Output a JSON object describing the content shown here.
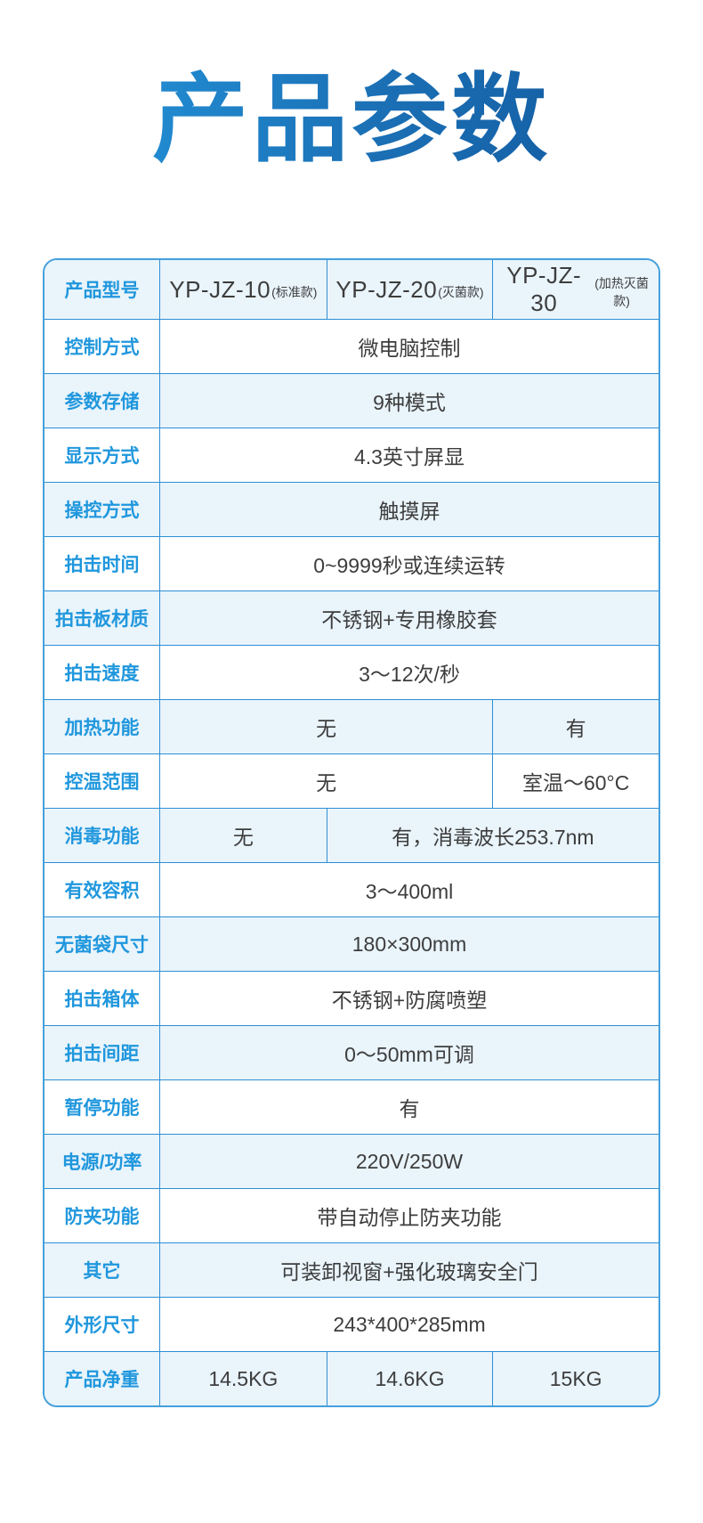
{
  "theme": {
    "title_gradient_start": "#2496dc",
    "title_gradient_end": "#11579d",
    "table_border": "#2e8fd5",
    "label_text": "#2097dd",
    "value_text": "#3d3d3d",
    "alt_row_bg": "#e9f4fb",
    "page_bg": "#ffffff"
  },
  "title": {
    "text": "产品参数"
  },
  "table": {
    "rows": [
      {
        "label": "产品型号",
        "models": [
          {
            "code": "YP-JZ-10",
            "variant": "(标准款)"
          },
          {
            "code": "YP-JZ-20",
            "variant": "(灭菌款)"
          },
          {
            "code": "YP-JZ-30",
            "variant": "(加热灭菌款)"
          }
        ]
      },
      {
        "label": "控制方式",
        "value": "微电脑控制"
      },
      {
        "label": "参数存储",
        "value": "9种模式"
      },
      {
        "label": "显示方式",
        "value": "4.3英寸屏显"
      },
      {
        "label": "操控方式",
        "value": "触摸屏"
      },
      {
        "label": "拍击时间",
        "value": "0~9999秒或连续运转"
      },
      {
        "label": "拍击板材质",
        "value": "不锈钢+专用橡胶套"
      },
      {
        "label": "拍击速度",
        "value": "3～12次/秒"
      },
      {
        "label": "加热功能",
        "left": "无",
        "right": "有"
      },
      {
        "label": "控温范围",
        "left": "无",
        "right": "室温～60°C"
      },
      {
        "label": "消毒功能",
        "left": "无",
        "right": "有，消毒波长253.7nm"
      },
      {
        "label": "有效容积",
        "value": "3～400ml"
      },
      {
        "label": "无菌袋尺寸",
        "value": "180×300mm"
      },
      {
        "label": "拍击箱体",
        "value": "不锈钢+防腐喷塑"
      },
      {
        "label": "拍击间距",
        "value": "0～50mm可调"
      },
      {
        "label": "暂停功能",
        "value": "有"
      },
      {
        "label": "电源/功率",
        "value": "220V/250W"
      },
      {
        "label": "防夹功能",
        "value": "带自动停止防夹功能"
      },
      {
        "label": "其它",
        "value": "可装卸视窗+强化玻璃安全门"
      },
      {
        "label": "外形尺寸",
        "value": "243*400*285mm"
      },
      {
        "label": "产品净重",
        "weights": [
          "14.5KG",
          "14.6KG",
          "15KG"
        ]
      }
    ]
  }
}
